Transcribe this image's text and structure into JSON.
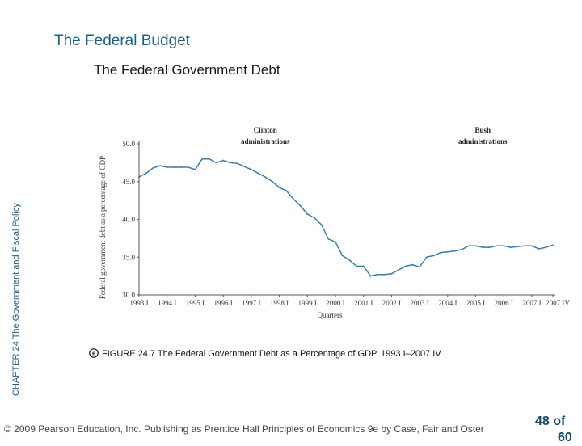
{
  "slide": {
    "title": "The Federal Budget",
    "subtitle": "The Federal Government Debt",
    "side_label": "CHAPTER 24 The Government and Fiscal Policy",
    "caption": "FIGURE 24.7 The Federal Government Debt as a Percentage of GDP, 1993 I–2007 IV",
    "footer": "© 2009 Pearson Education, Inc. Publishing as Prentice Hall   Principles of Economics 9e by Case, Fair and Oster",
    "page_number": "48 of",
    "page_number_cont": "60",
    "colors": {
      "title": "#1c5f86",
      "line": "#3a7ea8"
    }
  },
  "chart_data": {
    "type": "line",
    "title": "",
    "xlabel": "Quarters",
    "ylabel": "Federal government debt as a percentage of GDP",
    "ylim": [
      30.0,
      50.0
    ],
    "yticks": [
      "30.0",
      "35.0",
      "40.0",
      "45.0",
      "50.0"
    ],
    "ytick_values": [
      30.0,
      35.0,
      40.0,
      45.0,
      50.0
    ],
    "xlim": [
      0,
      59
    ],
    "xtick_labels": [
      "1993 I",
      "1994 I",
      "1995 I",
      "1996 I",
      "1997 I",
      "1998 I",
      "1999 I",
      "2000 I",
      "2001 I",
      "2002 I",
      "2003 I",
      "2004 I",
      "2005 I",
      "2006 I",
      "2007 I",
      "2007 IV"
    ],
    "xtick_positions": [
      0,
      4,
      8,
      12,
      16,
      20,
      24,
      28,
      32,
      36,
      40,
      44,
      48,
      52,
      56,
      59
    ],
    "annotations": [
      {
        "text_line1": "Clinton",
        "text_line2": "administrations",
        "x": 18
      },
      {
        "text_line1": "Bush",
        "text_line2": "administrations",
        "x": 49
      }
    ],
    "series": [
      {
        "name": "Federal debt as % of GDP",
        "values": [
          45.6,
          46.1,
          46.8,
          47.1,
          46.9,
          46.9,
          46.9,
          46.9,
          46.6,
          48.0,
          48.0,
          47.5,
          47.8,
          47.5,
          47.4,
          47.0,
          46.6,
          46.1,
          45.6,
          45.0,
          44.2,
          43.8,
          42.7,
          41.8,
          40.7,
          40.2,
          39.3,
          37.4,
          37.0,
          35.2,
          34.6,
          33.8,
          33.8,
          32.5,
          32.7,
          32.7,
          32.8,
          33.3,
          33.8,
          34.0,
          33.7,
          35.0,
          35.2,
          35.6,
          35.7,
          35.8,
          36.0,
          36.5,
          36.5,
          36.3,
          36.3,
          36.5,
          36.5,
          36.3,
          36.4,
          36.5,
          36.5,
          36.1,
          36.3,
          36.6
        ]
      }
    ]
  }
}
